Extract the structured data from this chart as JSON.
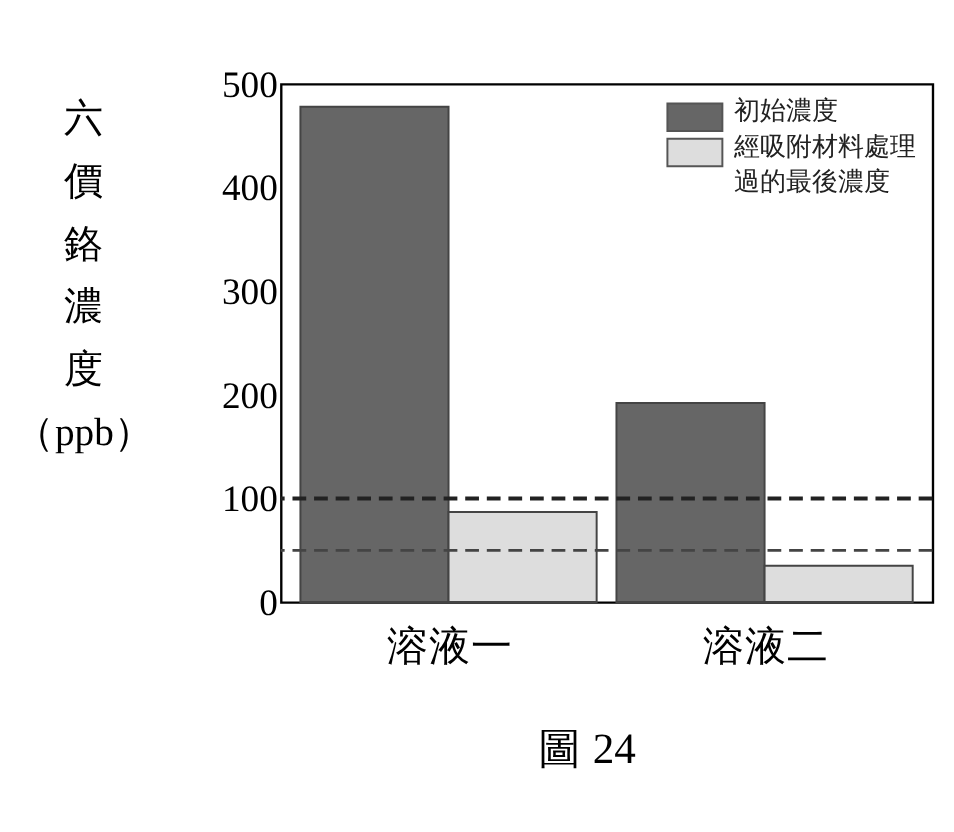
{
  "chart_data": {
    "type": "bar",
    "categories": [
      "溶液一",
      "溶液二"
    ],
    "series": [
      {
        "name": "初始濃度",
        "color": "#666666",
        "values": [
          478,
          192
        ]
      },
      {
        "name": "經吸附材料處理過的最後濃度",
        "color": "#dddddd",
        "values": [
          87,
          35
        ]
      }
    ],
    "ylabel": "六價鉻濃度（ppb）",
    "ylim": [
      0,
      500
    ],
    "yticks": [
      0,
      100,
      200,
      300,
      400,
      500
    ],
    "ref_lines": [
      {
        "axis": "y",
        "value": 100,
        "color": "#222222",
        "line_style": "dashed"
      },
      {
        "axis": "y",
        "value": 50,
        "color": "#444444",
        "line_style": "dashed"
      }
    ],
    "legend": "top right",
    "grid": false,
    "annotations": [
      "圖 24"
    ]
  }
}
